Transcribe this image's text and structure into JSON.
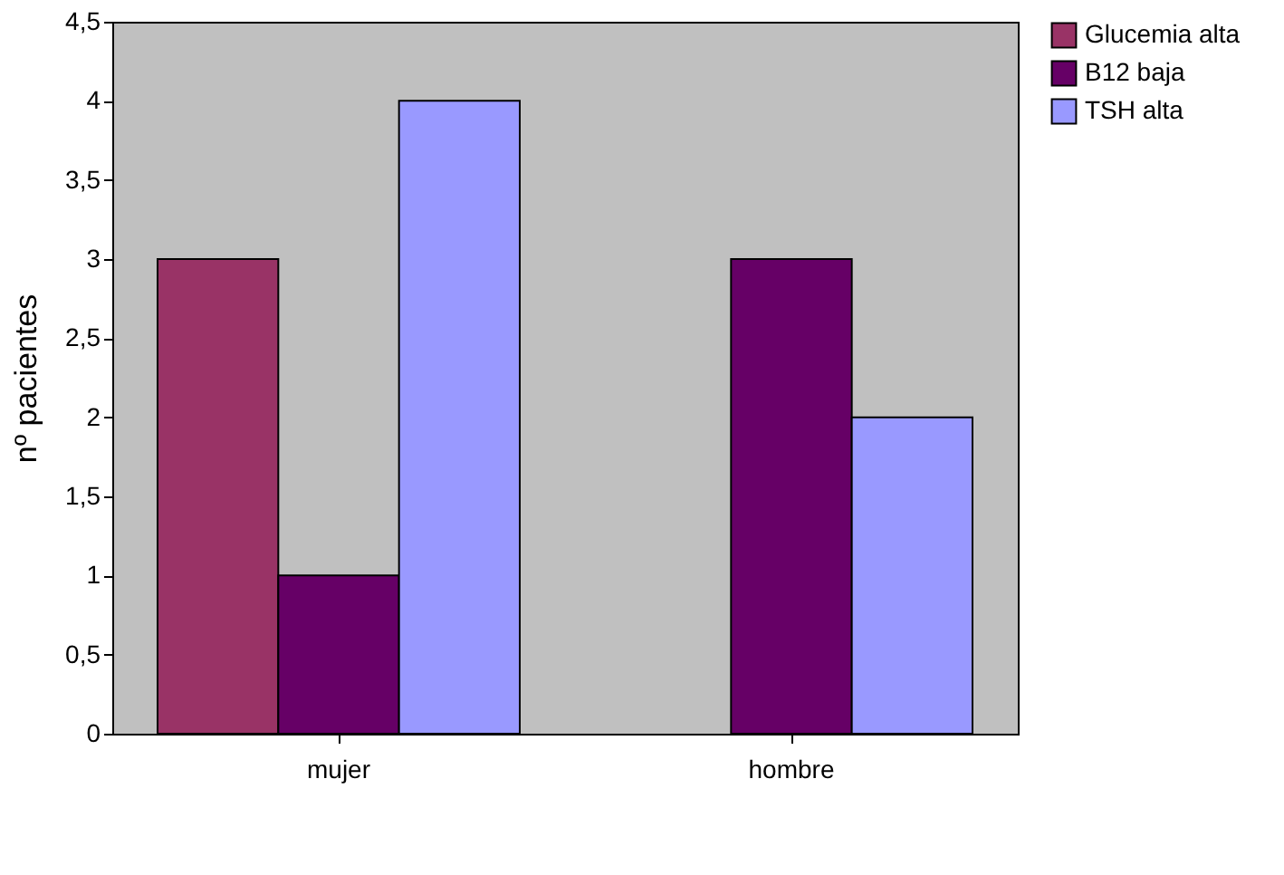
{
  "chart_data": {
    "type": "bar",
    "ylabel": "nº pacientes",
    "categories": [
      "mujer",
      "hombre"
    ],
    "series": [
      {
        "name": "Glucemia alta",
        "color": "#993366",
        "values": [
          3,
          null
        ]
      },
      {
        "name": "B12 baja",
        "color": "#660066",
        "values": [
          1,
          3
        ]
      },
      {
        "name": "TSH alta",
        "color": "#9999ff",
        "values": [
          4,
          2
        ]
      }
    ],
    "ylim": [
      0,
      4.5
    ],
    "yticks": [
      0,
      {
        "value": 0.5,
        "label": "0,5"
      },
      1,
      {
        "value": 1.5,
        "label": "1,5"
      },
      2,
      {
        "value": 2.5,
        "label": "2,5"
      },
      3,
      {
        "value": 3.5,
        "label": "3,5"
      },
      4,
      {
        "value": 4.5,
        "label": "4,5"
      }
    ],
    "grid": false,
    "legend": "right"
  }
}
